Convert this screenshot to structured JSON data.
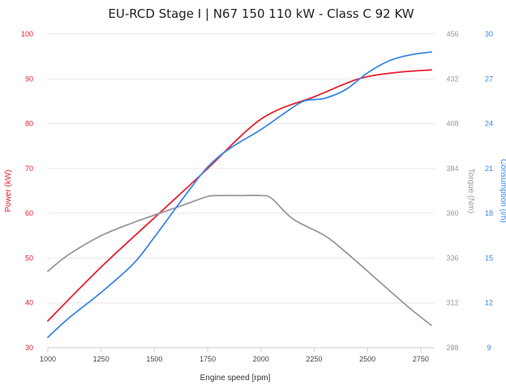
{
  "chart_data": {
    "type": "line",
    "title": "EU-RCD Stage I | N67 150 110 kW - Class C 92 KW",
    "xlabel": "Engine speed [rpm]",
    "x_ticks": [
      "1000",
      "1250",
      "1500",
      "1750",
      "2000",
      "2250",
      "2500",
      "2750"
    ],
    "xlim": [
      1000,
      2800
    ],
    "axes": [
      {
        "id": "power",
        "label": "Power (kW)",
        "side": "left",
        "color": "#e8202f",
        "lim": [
          30,
          100
        ],
        "ticks": [
          "30",
          "40",
          "50",
          "60",
          "70",
          "80",
          "90",
          "100"
        ]
      },
      {
        "id": "torque",
        "label": "Torque (Nm)",
        "side": "right",
        "color": "#999999",
        "lim": [
          288,
          456
        ],
        "ticks": [
          "288",
          "312",
          "336",
          "360",
          "384",
          "408",
          "432",
          "456"
        ]
      },
      {
        "id": "consumption",
        "label": "Consumption (l/h)",
        "side": "right",
        "color": "#3a87e8",
        "lim": [
          9,
          30
        ],
        "ticks": [
          "9",
          "12",
          "15",
          "18",
          "21",
          "24",
          "27",
          "30"
        ]
      }
    ],
    "grid": true,
    "series": [
      {
        "axis": "power",
        "color": "#e8202f",
        "x": [
          1000,
          1250,
          1500,
          1750,
          1900,
          2000,
          2100,
          2250,
          2400,
          2500,
          2650,
          2800
        ],
        "y": [
          36,
          48,
          59,
          70,
          77,
          81,
          83.5,
          86,
          89,
          90.5,
          91.5,
          92
        ]
      },
      {
        "axis": "torque",
        "color": "#999999",
        "x": [
          1000,
          1100,
          1250,
          1400,
          1500,
          1650,
          1750,
          1800,
          1900,
          2000,
          2050,
          2150,
          2300,
          2400,
          2550,
          2700,
          2800
        ],
        "y": [
          329,
          338,
          348,
          355,
          359,
          365,
          369,
          369.5,
          369.5,
          369.5,
          368,
          357,
          348,
          339,
          324,
          309,
          300
        ]
      },
      {
        "axis": "consumption",
        "color": "#3a87e8",
        "x": [
          1000,
          1100,
          1250,
          1400,
          1500,
          1650,
          1750,
          1850,
          2000,
          2100,
          2200,
          2300,
          2400,
          2500,
          2600,
          2700,
          2800
        ],
        "y": [
          9.7,
          11,
          12.7,
          14.6,
          16.4,
          19.3,
          21.1,
          22.3,
          23.6,
          24.6,
          25.5,
          25.7,
          26.3,
          27.4,
          28.2,
          28.6,
          28.8
        ]
      }
    ]
  }
}
